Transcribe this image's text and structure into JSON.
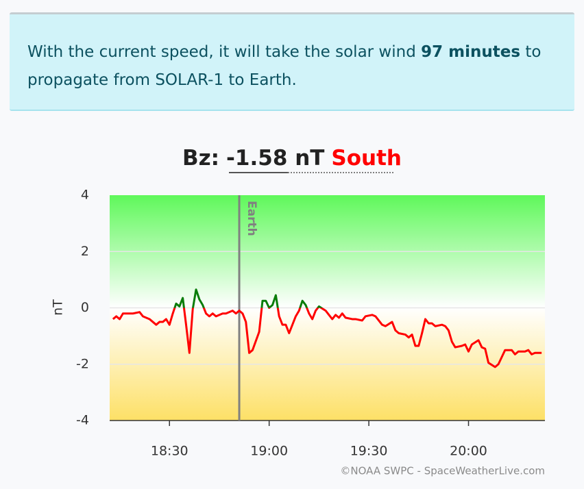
{
  "info": {
    "text_before": "With the current speed, it will take the solar wind",
    "highlight": "97 minutes",
    "text_after": "to propagate from SOLAR-1 to Earth."
  },
  "credit": "©NOAA SWPC - SpaceWeatherLive.com",
  "chart_data": {
    "type": "line",
    "title": "Bz:",
    "value_text": "-1.58 nT",
    "direction": "South",
    "y_label": "nT",
    "x": [
      "18:13",
      "18:14",
      "18:15",
      "18:16",
      "18:18",
      "18:19",
      "18:21",
      "18:22",
      "18:24",
      "18:25",
      "18:26",
      "18:27",
      "18:28",
      "18:29",
      "18:30",
      "18:31",
      "18:32",
      "18:33",
      "18:34",
      "18:35",
      "18:36",
      "18:37",
      "18:38",
      "18:39",
      "18:40",
      "18:41",
      "18:42",
      "18:43",
      "18:44",
      "18:46",
      "18:47",
      "18:49",
      "18:50",
      "18:51",
      "18:52",
      "18:53",
      "18:54",
      "18:55",
      "18:57",
      "18:58",
      "18:59",
      "19:00",
      "19:01",
      "19:02",
      "19:03",
      "19:04",
      "19:05",
      "19:06",
      "19:08",
      "19:09",
      "19:10",
      "19:11",
      "19:12",
      "19:13",
      "19:14",
      "19:15",
      "19:17",
      "19:18",
      "19:19",
      "19:20",
      "19:21",
      "19:22",
      "19:23",
      "19:25",
      "19:26",
      "19:28",
      "19:29",
      "19:31",
      "19:32",
      "19:34",
      "19:35",
      "19:37",
      "19:38",
      "19:39",
      "19:41",
      "19:42",
      "19:43",
      "19:44",
      "19:45",
      "19:46",
      "19:47",
      "19:48",
      "19:49",
      "19:50",
      "19:52",
      "19:53",
      "19:54",
      "19:55",
      "19:56",
      "19:58",
      "19:59",
      "20:00",
      "20:01",
      "20:03",
      "20:04",
      "20:05",
      "20:06",
      "20:08",
      "20:09",
      "20:10",
      "20:11",
      "20:13",
      "20:14",
      "20:15",
      "20:17",
      "20:18",
      "20:19",
      "20:20",
      "20:22"
    ],
    "values": [
      -0.4,
      -0.3,
      -0.4,
      -0.2,
      -0.2,
      -0.2,
      -0.15,
      -0.3,
      -0.4,
      -0.5,
      -0.6,
      -0.5,
      -0.5,
      -0.4,
      -0.6,
      -0.2,
      0.15,
      0.05,
      0.35,
      -0.6,
      -1.6,
      -0.05,
      0.65,
      0.3,
      0.1,
      -0.2,
      -0.3,
      -0.2,
      -0.3,
      -0.2,
      -0.2,
      -0.1,
      -0.2,
      -0.1,
      -0.2,
      -0.5,
      -1.6,
      -1.5,
      -0.85,
      0.25,
      0.25,
      0.0,
      0.1,
      0.45,
      -0.3,
      -0.6,
      -0.6,
      -0.9,
      -0.3,
      -0.1,
      0.25,
      0.1,
      -0.2,
      -0.4,
      -0.1,
      0.05,
      -0.1,
      -0.25,
      -0.4,
      -0.25,
      -0.35,
      -0.2,
      -0.35,
      -0.4,
      -0.4,
      -0.45,
      -0.3,
      -0.25,
      -0.3,
      -0.6,
      -0.65,
      -0.5,
      -0.8,
      -0.9,
      -0.95,
      -1.05,
      -0.95,
      -1.35,
      -1.35,
      -0.9,
      -0.4,
      -0.55,
      -0.55,
      -0.65,
      -0.6,
      -0.65,
      -0.8,
      -1.2,
      -1.4,
      -1.35,
      -1.3,
      -1.55,
      -1.3,
      -1.15,
      -1.4,
      -1.45,
      -1.95,
      -2.1,
      -2.0,
      -1.75,
      -1.5,
      -1.5,
      -1.65,
      -1.55,
      -1.55,
      -1.5,
      -1.65,
      -1.6,
      -1.6
    ],
    "colors": {
      "above": "#0a7d0a",
      "below": "#ff0000"
    },
    "xlim": [
      "18:12",
      "20:23"
    ],
    "xticks": [
      "18:30",
      "19:00",
      "19:30",
      "20:00"
    ],
    "ylim": [
      -4,
      4
    ],
    "yticks": [
      -4,
      -2,
      0,
      2,
      4
    ],
    "grid": true,
    "marker": {
      "x": "18:51",
      "label": "Earth"
    }
  }
}
